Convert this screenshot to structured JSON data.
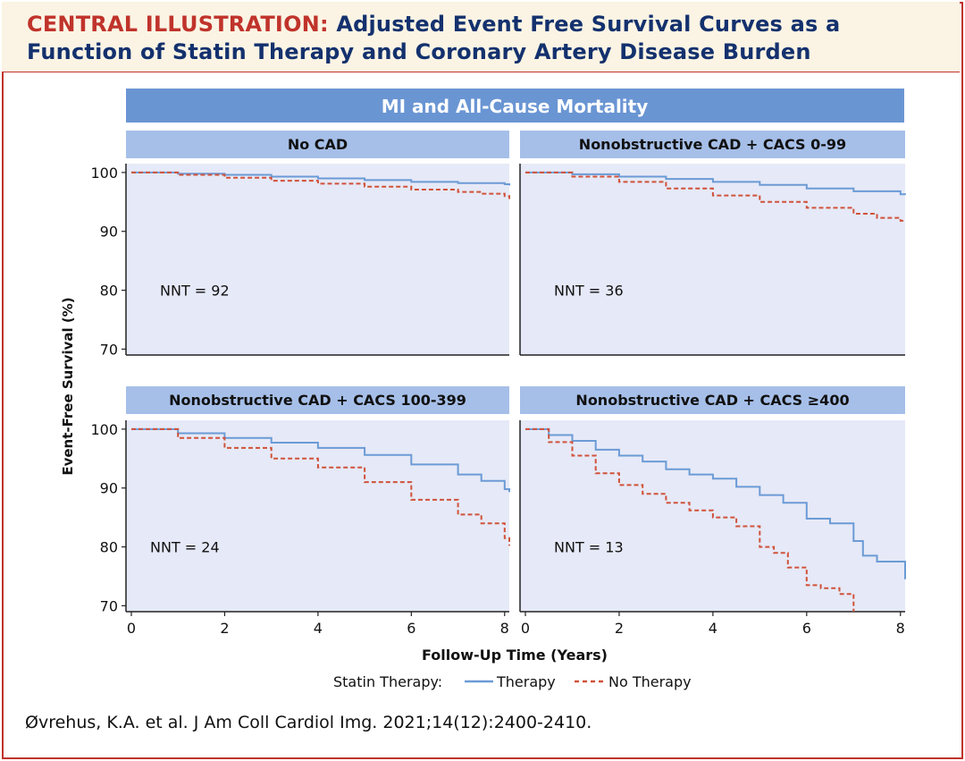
{
  "header": {
    "prefix": "CENTRAL ILLUSTRATION:",
    "title": "Adjusted Event Free Survival Curves as a Function of Statin Therapy and Coronary Artery Disease Burden"
  },
  "citation": "Øvrehus, K.A. et al. J Am Coll Cardiol Img. 2021;14(12):2400-2410.",
  "colors": {
    "therapy": "#6b9bd6",
    "no_therapy": "#d0523a",
    "panel_bg": "#e6e9f7",
    "strip": "#a6bfe8",
    "top_strip": "#6a95d3",
    "title": "#14316e",
    "accent": "#c0332b"
  },
  "chart_data": {
    "type": "line",
    "suptitle": "MI and All-Cause Mortality",
    "xlabel": "Follow-Up Time (Years)",
    "ylabel": "Event-Free Survival (%)",
    "xlim": [
      0,
      8.1
    ],
    "ylim": [
      69,
      101.5
    ],
    "xticks": [
      "0",
      "2",
      "4",
      "6",
      "8"
    ],
    "yticks": [
      "100",
      "90",
      "80",
      "70"
    ],
    "legend": {
      "title": "Statin Therapy:",
      "therapy": "Therapy",
      "no_therapy": "No Therapy"
    },
    "panels": [
      {
        "title": "No CAD",
        "nnt": "NNT = 92",
        "series": [
          {
            "name": "Therapy",
            "x": [
              0,
              1,
              2,
              3,
              4,
              5,
              6,
              7,
              8,
              8.1
            ],
            "y": [
              100,
              99.8,
              99.6,
              99.3,
              99.0,
              98.7,
              98.4,
              98.2,
              98.0,
              97.8
            ]
          },
          {
            "name": "No Therapy",
            "x": [
              0,
              1,
              2,
              3,
              4,
              5,
              6,
              7,
              7.5,
              8,
              8.1
            ],
            "y": [
              100,
              99.6,
              99.1,
              98.6,
              98.1,
              97.6,
              97.1,
              96.7,
              96.4,
              96.0,
              95.5
            ]
          }
        ]
      },
      {
        "title": "Nonobstructive CAD + CACS 0-99",
        "nnt": "NNT = 36",
        "series": [
          {
            "name": "Therapy",
            "x": [
              0,
              1,
              2,
              3,
              4,
              5,
              6,
              7,
              8,
              8.1
            ],
            "y": [
              100,
              99.7,
              99.3,
              98.9,
              98.4,
              97.9,
              97.3,
              96.8,
              96.3,
              96.2
            ]
          },
          {
            "name": "No Therapy",
            "x": [
              0,
              1,
              2,
              3,
              4,
              5,
              6,
              7,
              7.5,
              8,
              8.1
            ],
            "y": [
              100,
              99.3,
              98.4,
              97.3,
              96.1,
              95.0,
              94.0,
              93.0,
              92.3,
              91.8,
              91.8
            ]
          }
        ]
      },
      {
        "title": "Nonobstructive CAD + CACS 100-399",
        "nnt": "NNT = 24",
        "series": [
          {
            "name": "Therapy",
            "x": [
              0,
              1,
              2,
              3,
              4,
              5,
              6,
              7,
              7.5,
              8,
              8.1
            ],
            "y": [
              100,
              99.3,
              98.5,
              97.7,
              96.8,
              95.6,
              94.0,
              92.3,
              91.2,
              89.8,
              89.3
            ]
          },
          {
            "name": "No Therapy",
            "x": [
              0,
              1,
              2,
              3,
              4,
              5,
              6,
              7,
              7.5,
              8,
              8.1
            ],
            "y": [
              100,
              98.5,
              96.8,
              95.0,
              93.5,
              91.0,
              88.0,
              85.5,
              84.0,
              81.5,
              80.2
            ]
          }
        ]
      },
      {
        "title": "Nonobstructive CAD + CACS ≥400",
        "nnt": "NNT = 13",
        "series": [
          {
            "name": "Therapy",
            "x": [
              0,
              0.5,
              1,
              1.5,
              2,
              2.5,
              3,
              3.5,
              4,
              4.5,
              5,
              5.5,
              6,
              6.5,
              7,
              7.2,
              7.5,
              8,
              8.1
            ],
            "y": [
              100,
              99,
              98,
              96.5,
              95.5,
              94.5,
              93.2,
              92.3,
              91.6,
              90.2,
              88.8,
              87.5,
              84.8,
              84,
              81,
              78.5,
              77.5,
              77.5,
              74.5
            ]
          },
          {
            "name": "No Therapy",
            "x": [
              0,
              0.5,
              1,
              1.5,
              2,
              2.5,
              3,
              3.5,
              4,
              4.5,
              5,
              5.3,
              5.6,
              6,
              6.3,
              6.7,
              7.0
            ],
            "y": [
              100,
              97.8,
              95.5,
              92.5,
              90.5,
              89,
              87.5,
              86.2,
              85,
              83.5,
              80,
              79,
              76.5,
              73.5,
              73,
              72,
              69
            ]
          }
        ]
      }
    ]
  }
}
